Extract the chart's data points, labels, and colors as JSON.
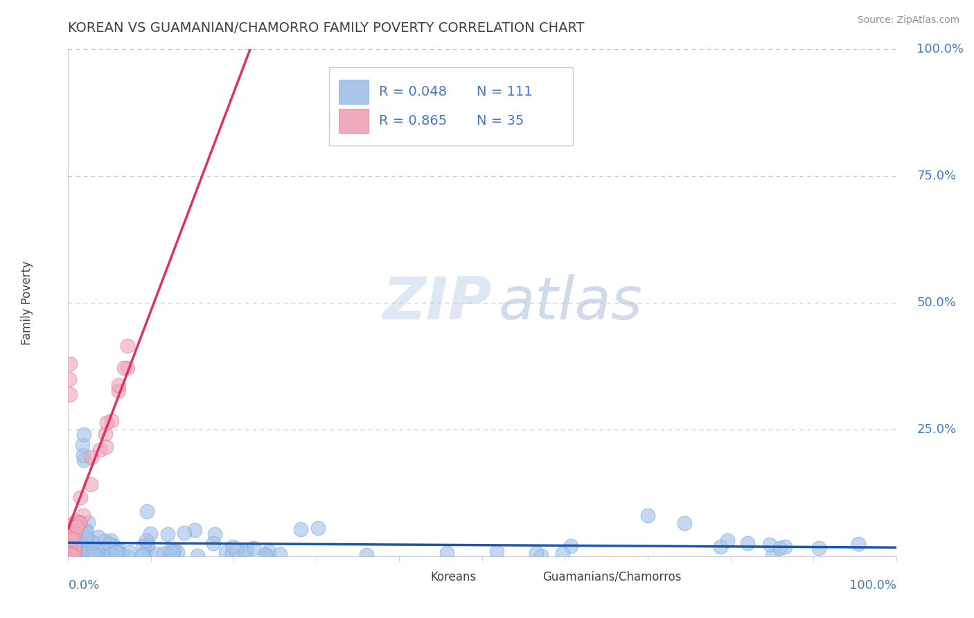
{
  "title": "KOREAN VS GUAMANIAN/CHAMORRO FAMILY POVERTY CORRELATION CHART",
  "source": "Source: ZipAtlas.com",
  "ylabel": "Family Poverty",
  "watermark_zip": "ZIP",
  "watermark_atlas": "atlas",
  "korean_R": 0.048,
  "korean_N": 111,
  "guam_R": 0.865,
  "guam_N": 35,
  "korean_color": "#a8c4e8",
  "korean_line_color": "#1a56b0",
  "guam_color": "#f0a8bc",
  "guam_line_color": "#e03060",
  "background_color": "#ffffff",
  "grid_color": "#c0c0cc",
  "title_color": "#404040",
  "axis_label_color": "#4478c8",
  "source_color": "#909090",
  "scatter_size": 220,
  "scatter_alpha": 0.65,
  "scatter_lw": 0.8,
  "korean_edge_color": "#7aabe0",
  "guam_edge_color": "#e08098"
}
